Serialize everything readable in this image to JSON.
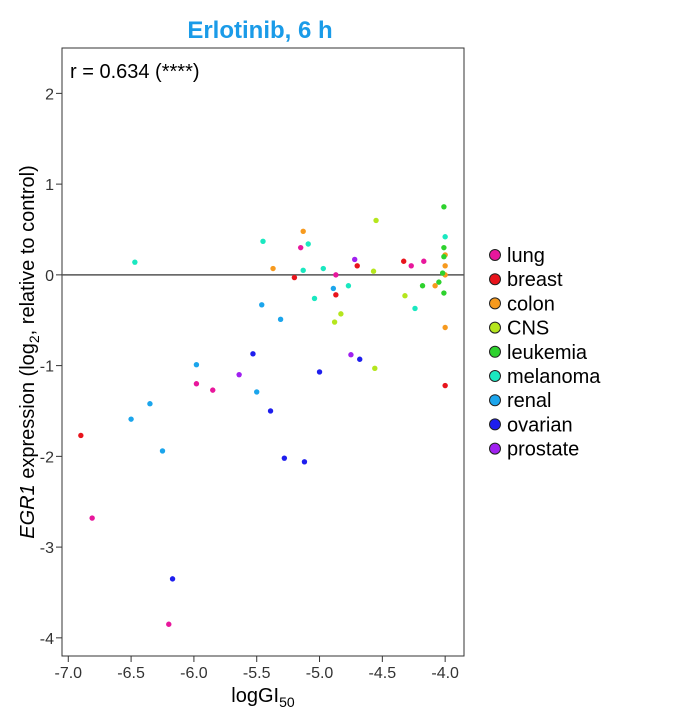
{
  "chart_data": {
    "type": "scatter",
    "title": "Erlotinib, 6 h",
    "annotation": "r = 0.634 (****)",
    "xlabel": {
      "main": "logGI",
      "sub": "50"
    },
    "ylabel": {
      "italic": "EGR1",
      "pre": " expression (log",
      "sub": "2",
      "post": ", relative to control)"
    },
    "xlim": [
      -7.05,
      -3.85
    ],
    "ylim": [
      -4.2,
      2.5
    ],
    "xticks": [
      -7.0,
      -6.5,
      -6.0,
      -5.5,
      -5.0,
      -4.5,
      -4.0
    ],
    "xtick_labels": [
      "-7.0",
      "-6.5",
      "-6.0",
      "-5.5",
      "-5.0",
      "-4.5",
      "-4.0"
    ],
    "yticks": [
      -4,
      -3,
      -2,
      -1,
      0,
      1,
      2
    ],
    "ytick_labels": [
      "-4",
      "-3",
      "-2",
      "-1",
      "0",
      "1",
      "2"
    ],
    "reference_line_y": 0,
    "legend_position": "right",
    "series": [
      {
        "name": "lung",
        "color": "#e8179c",
        "points": [
          [
            -6.81,
            -2.68
          ],
          [
            -6.2,
            -3.85
          ],
          [
            -5.98,
            -1.2
          ],
          [
            -5.85,
            -1.27
          ],
          [
            -5.15,
            0.3
          ],
          [
            -4.87,
            0.0
          ],
          [
            -4.27,
            0.1
          ],
          [
            -4.17,
            0.15
          ]
        ]
      },
      {
        "name": "breast",
        "color": "#e8141c",
        "points": [
          [
            -6.9,
            -1.77
          ],
          [
            -5.2,
            -0.03
          ],
          [
            -4.87,
            -0.22
          ],
          [
            -4.7,
            0.1
          ],
          [
            -4.33,
            0.15
          ],
          [
            -4.0,
            -1.22
          ]
        ]
      },
      {
        "name": "colon",
        "color": "#f79a1e",
        "points": [
          [
            -5.37,
            0.07
          ],
          [
            -5.13,
            0.48
          ],
          [
            -4.08,
            -0.12
          ],
          [
            -4.0,
            -0.58
          ],
          [
            -4.0,
            0.0
          ],
          [
            -4.0,
            0.1
          ],
          [
            -4.0,
            0.22
          ]
        ]
      },
      {
        "name": "CNS",
        "color": "#b5e61d",
        "points": [
          [
            -4.88,
            -0.52
          ],
          [
            -4.83,
            -0.43
          ],
          [
            -4.57,
            0.04
          ],
          [
            -4.55,
            0.6
          ],
          [
            -4.56,
            -1.03
          ],
          [
            -4.32,
            -0.23
          ]
        ]
      },
      {
        "name": "leukemia",
        "color": "#2ed22e",
        "points": [
          [
            -4.18,
            -0.12
          ],
          [
            -4.05,
            -0.08
          ],
          [
            -4.02,
            0.02
          ],
          [
            -4.01,
            0.75
          ],
          [
            -4.01,
            0.3
          ],
          [
            -4.01,
            0.2
          ],
          [
            -4.01,
            -0.2
          ]
        ]
      },
      {
        "name": "melanoma",
        "color": "#1ae8c0",
        "points": [
          [
            -6.47,
            0.14
          ],
          [
            -5.45,
            0.37
          ],
          [
            -5.13,
            0.05
          ],
          [
            -5.09,
            0.34
          ],
          [
            -5.04,
            -0.26
          ],
          [
            -4.97,
            0.07
          ],
          [
            -4.77,
            -0.12
          ],
          [
            -4.24,
            -0.37
          ],
          [
            -4.0,
            0.42
          ]
        ]
      },
      {
        "name": "renal",
        "color": "#1ba5ec",
        "points": [
          [
            -6.5,
            -1.59
          ],
          [
            -6.35,
            -1.42
          ],
          [
            -6.25,
            -1.94
          ],
          [
            -5.98,
            -0.99
          ],
          [
            -5.5,
            -1.29
          ],
          [
            -5.46,
            -0.33
          ],
          [
            -5.31,
            -0.49
          ],
          [
            -4.89,
            -0.15
          ]
        ]
      },
      {
        "name": "ovarian",
        "color": "#1e1eee",
        "points": [
          [
            -6.17,
            -3.35
          ],
          [
            -5.53,
            -0.87
          ],
          [
            -5.39,
            -1.5
          ],
          [
            -5.28,
            -2.02
          ],
          [
            -5.12,
            -2.06
          ],
          [
            -5.0,
            -1.07
          ],
          [
            -4.68,
            -0.93
          ]
        ]
      },
      {
        "name": "prostate",
        "color": "#a020f0",
        "points": [
          [
            -5.64,
            -1.1
          ],
          [
            -4.75,
            -0.88
          ],
          [
            -4.72,
            0.17
          ]
        ]
      }
    ]
  }
}
